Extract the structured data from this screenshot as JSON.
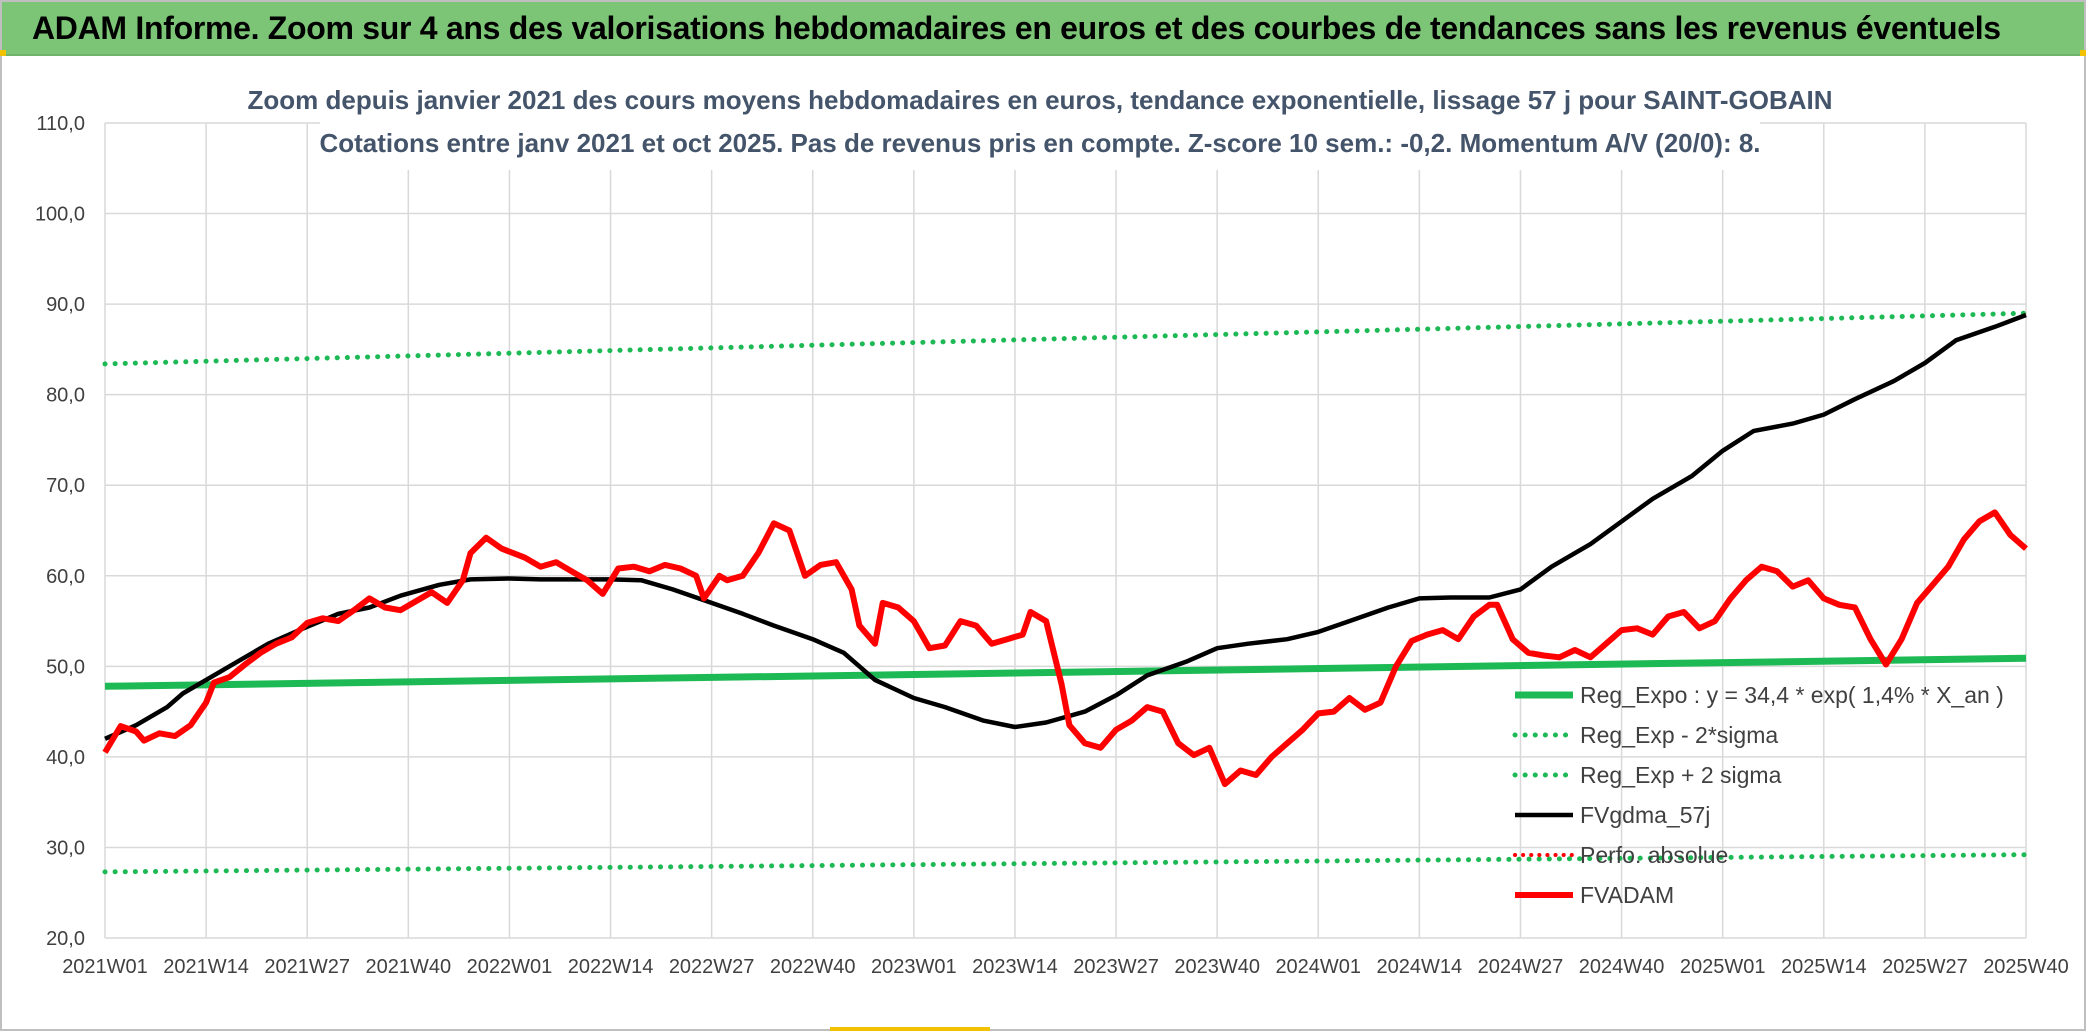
{
  "banner": {
    "title": "ADAM Informe. Zoom sur 4 ans des valorisations hebdomadaires en euros et des courbes de tendances sans les revenus éventuels"
  },
  "colors": {
    "banner": "#7cc576",
    "trend_green": "#1db954",
    "fvadam_red": "#ff0000",
    "ma_black": "#000000",
    "grid": "#d9d9d9",
    "axis_text": "#404040",
    "title_text": "#44546a"
  },
  "chart_data": {
    "type": "line",
    "title": "Zoom depuis janvier 2021 des cours moyens hebdomadaires en euros, tendance exponentielle, lissage 57 j pour SAINT-GOBAIN",
    "subtitle": "Cotations entre janv 2021 et oct 2025. Pas de revenus pris en compte. Z-score 10 sem.: -0,2. Momentum A/V (20/0): 8.",
    "xlabel": "",
    "ylabel": "",
    "ylim": [
      20,
      110
    ],
    "yticks": [
      "20,0",
      "30,0",
      "40,0",
      "50,0",
      "60,0",
      "70,0",
      "80,0",
      "90,0",
      "100,0",
      "110,0"
    ],
    "xticks": [
      "2021W01",
      "2021W14",
      "2021W27",
      "2021W40",
      "2022W01",
      "2022W14",
      "2022W27",
      "2022W40",
      "2023W01",
      "2023W14",
      "2023W27",
      "2023W40",
      "2024W01",
      "2024W14",
      "2024W27",
      "2024W40",
      "2025W01",
      "2025W14",
      "2025W27",
      "2025W40"
    ],
    "grid": true,
    "legend_position": "bottom-right",
    "x_index_range": [
      0,
      247
    ],
    "series": [
      {
        "name": "Reg_Expo : y = 34,4 * exp( 1,4% *  X_an )",
        "style": "solid-green",
        "points": [
          [
            0,
            47.8
          ],
          [
            247,
            50.9
          ]
        ]
      },
      {
        "name": "Reg_Exp - 2*sigma",
        "style": "dotted-green",
        "points": [
          [
            0,
            27.3
          ],
          [
            247,
            29.2
          ]
        ]
      },
      {
        "name": "Reg_Exp + 2 sigma",
        "style": "dotted-green",
        "points": [
          [
            0,
            83.4
          ],
          [
            247,
            89.0
          ]
        ]
      },
      {
        "name": "FVgdma_57j",
        "style": "solid-black",
        "points": [
          [
            0,
            42.0
          ],
          [
            4,
            43.5
          ],
          [
            8,
            45.5
          ],
          [
            10,
            47.0
          ],
          [
            13,
            48.5
          ],
          [
            17,
            50.5
          ],
          [
            21,
            52.5
          ],
          [
            25,
            54.0
          ],
          [
            30,
            55.8
          ],
          [
            34,
            56.5
          ],
          [
            38,
            57.8
          ],
          [
            43,
            59.0
          ],
          [
            47,
            59.6
          ],
          [
            52,
            59.7
          ],
          [
            56,
            59.6
          ],
          [
            61,
            59.6
          ],
          [
            65,
            59.6
          ],
          [
            69,
            59.5
          ],
          [
            73,
            58.5
          ],
          [
            78,
            57.0
          ],
          [
            82,
            55.8
          ],
          [
            86,
            54.5
          ],
          [
            91,
            53.0
          ],
          [
            95,
            51.5
          ],
          [
            99,
            48.5
          ],
          [
            104,
            46.5
          ],
          [
            108,
            45.5
          ],
          [
            113,
            44.0
          ],
          [
            117,
            43.3
          ],
          [
            121,
            43.8
          ],
          [
            126,
            45.0
          ],
          [
            130,
            46.8
          ],
          [
            134,
            49.0
          ],
          [
            139,
            50.5
          ],
          [
            143,
            52.0
          ],
          [
            147,
            52.5
          ],
          [
            152,
            53.0
          ],
          [
            156,
            53.8
          ],
          [
            160,
            55.0
          ],
          [
            165,
            56.5
          ],
          [
            169,
            57.5
          ],
          [
            173,
            57.6
          ],
          [
            178,
            57.6
          ],
          [
            182,
            58.5
          ],
          [
            186,
            61.0
          ],
          [
            191,
            63.5
          ],
          [
            195,
            66.0
          ],
          [
            199,
            68.5
          ],
          [
            204,
            71.0
          ],
          [
            208,
            73.8
          ],
          [
            212,
            76.0
          ],
          [
            217,
            76.8
          ],
          [
            221,
            77.8
          ],
          [
            225,
            79.5
          ],
          [
            230,
            81.5
          ],
          [
            234,
            83.5
          ],
          [
            238,
            86.0
          ],
          [
            243,
            87.5
          ],
          [
            247,
            88.8
          ]
        ]
      },
      {
        "name": "Perfo. absolue",
        "style": "dotted-red",
        "points": []
      },
      {
        "name": "FVADAM",
        "style": "solid-red",
        "points": [
          [
            0,
            40.5
          ],
          [
            2,
            43.4
          ],
          [
            4,
            42.8
          ],
          [
            5,
            41.8
          ],
          [
            7,
            42.6
          ],
          [
            9,
            42.3
          ],
          [
            11,
            43.5
          ],
          [
            13,
            46.0
          ],
          [
            14,
            48.2
          ],
          [
            16,
            48.8
          ],
          [
            18,
            50.2
          ],
          [
            20,
            51.5
          ],
          [
            22,
            52.5
          ],
          [
            24,
            53.2
          ],
          [
            26,
            54.8
          ],
          [
            28,
            55.3
          ],
          [
            30,
            55.0
          ],
          [
            32,
            56.2
          ],
          [
            34,
            57.5
          ],
          [
            36,
            56.5
          ],
          [
            38,
            56.2
          ],
          [
            40,
            57.2
          ],
          [
            42,
            58.2
          ],
          [
            44,
            57.0
          ],
          [
            46,
            59.5
          ],
          [
            47,
            62.5
          ],
          [
            49,
            64.2
          ],
          [
            51,
            63.0
          ],
          [
            54,
            62.0
          ],
          [
            56,
            61.0
          ],
          [
            58,
            61.5
          ],
          [
            60,
            60.5
          ],
          [
            62,
            59.5
          ],
          [
            64,
            58.0
          ],
          [
            66,
            60.8
          ],
          [
            68,
            61.0
          ],
          [
            70,
            60.5
          ],
          [
            72,
            61.2
          ],
          [
            74,
            60.8
          ],
          [
            76,
            60.0
          ],
          [
            77,
            57.5
          ],
          [
            79,
            60.0
          ],
          [
            80,
            59.5
          ],
          [
            82,
            60.0
          ],
          [
            84,
            62.5
          ],
          [
            86,
            65.8
          ],
          [
            88,
            65.0
          ],
          [
            90,
            60.0
          ],
          [
            92,
            61.2
          ],
          [
            94,
            61.5
          ],
          [
            96,
            58.5
          ],
          [
            97,
            54.5
          ],
          [
            99,
            52.5
          ],
          [
            100,
            57.0
          ],
          [
            102,
            56.5
          ],
          [
            104,
            55.0
          ],
          [
            106,
            52.0
          ],
          [
            108,
            52.3
          ],
          [
            110,
            55.0
          ],
          [
            112,
            54.5
          ],
          [
            114,
            52.5
          ],
          [
            116,
            53.0
          ],
          [
            118,
            53.5
          ],
          [
            119,
            56.0
          ],
          [
            121,
            55.0
          ],
          [
            123,
            48.0
          ],
          [
            124,
            43.5
          ],
          [
            126,
            41.5
          ],
          [
            128,
            41.0
          ],
          [
            130,
            43.0
          ],
          [
            132,
            44.0
          ],
          [
            134,
            45.5
          ],
          [
            136,
            45.0
          ],
          [
            138,
            41.5
          ],
          [
            140,
            40.2
          ],
          [
            142,
            41.0
          ],
          [
            144,
            37.0
          ],
          [
            146,
            38.5
          ],
          [
            148,
            38.0
          ],
          [
            150,
            40.0
          ],
          [
            152,
            41.5
          ],
          [
            154,
            43.0
          ],
          [
            156,
            44.8
          ],
          [
            158,
            45.0
          ],
          [
            160,
            46.5
          ],
          [
            162,
            45.2
          ],
          [
            164,
            46.0
          ],
          [
            166,
            50.0
          ],
          [
            168,
            52.8
          ],
          [
            170,
            53.5
          ],
          [
            172,
            54.0
          ],
          [
            174,
            53.0
          ],
          [
            176,
            55.5
          ],
          [
            178,
            56.8
          ],
          [
            179,
            56.8
          ],
          [
            181,
            53.0
          ],
          [
            183,
            51.5
          ],
          [
            185,
            51.2
          ],
          [
            187,
            51.0
          ],
          [
            189,
            51.8
          ],
          [
            191,
            51.0
          ],
          [
            193,
            52.5
          ],
          [
            195,
            54.0
          ],
          [
            197,
            54.2
          ],
          [
            199,
            53.5
          ],
          [
            201,
            55.5
          ],
          [
            203,
            56.0
          ],
          [
            205,
            54.2
          ],
          [
            207,
            55.0
          ],
          [
            209,
            57.5
          ],
          [
            211,
            59.5
          ],
          [
            213,
            61.0
          ],
          [
            215,
            60.5
          ],
          [
            217,
            58.8
          ],
          [
            219,
            59.5
          ],
          [
            221,
            57.5
          ],
          [
            223,
            56.8
          ],
          [
            225,
            56.5
          ],
          [
            227,
            53.0
          ],
          [
            229,
            50.2
          ],
          [
            231,
            53.0
          ],
          [
            233,
            57.0
          ],
          [
            235,
            59.0
          ],
          [
            237,
            61.0
          ],
          [
            239,
            64.0
          ],
          [
            241,
            66.0
          ],
          [
            243,
            67.0
          ],
          [
            245,
            64.5
          ],
          [
            247,
            63.0
          ]
        ]
      }
    ]
  }
}
